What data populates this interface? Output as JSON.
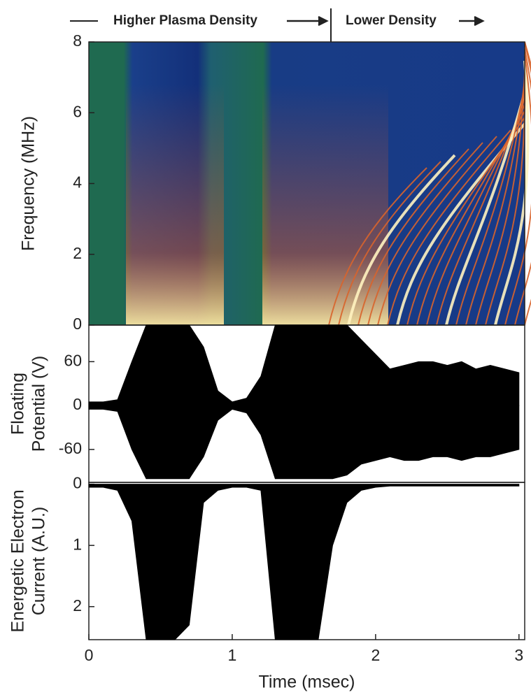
{
  "header": {
    "left": "Higher Plasma Density",
    "right": "Lower Density"
  },
  "chart_data": [
    {
      "type": "spectrogram",
      "y_label": "Frequency (MHz)",
      "ylim": [
        0,
        8
      ],
      "yticks": [
        0,
        2,
        4,
        6,
        8
      ]
    },
    {
      "type": "band",
      "y_label": [
        "Floating",
        "Potential (V)"
      ],
      "ylim": [
        -105,
        110
      ],
      "yticks": [
        -60,
        0,
        60
      ],
      "color": "#000000",
      "x": [
        0,
        0.1,
        0.2,
        0.3,
        0.4,
        0.5,
        0.6,
        0.7,
        0.8,
        0.9,
        1.0,
        1.1,
        1.2,
        1.3,
        1.4,
        1.5,
        1.6,
        1.7,
        1.8,
        1.9,
        2.0,
        2.1,
        2.2,
        2.3,
        2.4,
        2.5,
        2.6,
        2.7,
        2.8,
        2.9,
        3.0
      ],
      "upper": [
        5,
        5,
        8,
        60,
        110,
        110,
        110,
        110,
        80,
        20,
        5,
        10,
        40,
        110,
        110,
        110,
        110,
        110,
        110,
        90,
        70,
        50,
        55,
        60,
        60,
        55,
        60,
        50,
        55,
        50,
        45
      ],
      "lower": [
        -5,
        -5,
        -8,
        -60,
        -100,
        -100,
        -100,
        -100,
        -70,
        -20,
        -5,
        -10,
        -40,
        -100,
        -100,
        -100,
        -100,
        -100,
        -95,
        -80,
        -75,
        -70,
        -75,
        -75,
        -70,
        -70,
        -75,
        -70,
        -70,
        -65,
        -60
      ]
    },
    {
      "type": "area",
      "y_label": [
        "Energetic Electron",
        "Current (A.U.)"
      ],
      "ylim": [
        -0.03,
        2.54
      ],
      "inverted": true,
      "yticks": [
        0,
        1,
        2
      ],
      "color": "#000000",
      "x": [
        0,
        0.1,
        0.2,
        0.3,
        0.4,
        0.5,
        0.6,
        0.7,
        0.8,
        0.9,
        1.0,
        1.1,
        1.2,
        1.3,
        1.4,
        1.5,
        1.6,
        1.7,
        1.8,
        1.9,
        2.0,
        2.1,
        2.2,
        2.3,
        2.4,
        2.5,
        2.6,
        2.7,
        2.8,
        2.9,
        3.0
      ],
      "values": [
        0.05,
        0.05,
        0.1,
        0.6,
        2.54,
        2.54,
        2.54,
        2.3,
        0.3,
        0.1,
        0.05,
        0.05,
        0.1,
        2.54,
        2.54,
        2.54,
        2.54,
        1.0,
        0.3,
        0.1,
        0.05,
        0.03,
        0.03,
        0.03,
        0.03,
        0.03,
        0.03,
        0.03,
        0.03,
        0.03,
        0.03
      ],
      "xlim": [
        0,
        3.04
      ],
      "xticks": [
        0,
        1,
        2,
        3
      ],
      "x_label": "Time (msec)"
    }
  ]
}
